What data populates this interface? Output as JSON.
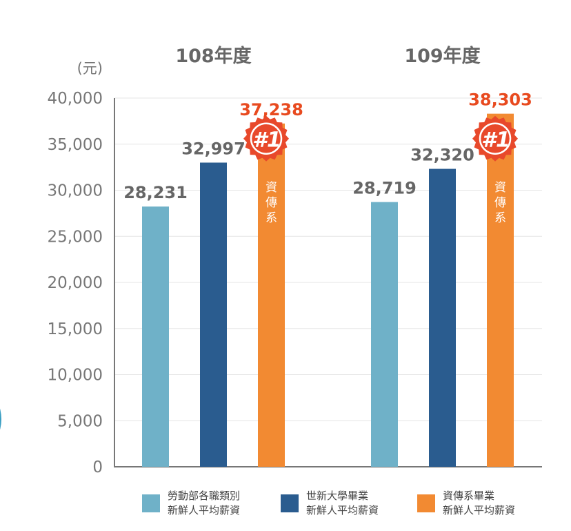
{
  "colors": {
    "series1": "#6fb1c8",
    "series2": "#2a5c8f",
    "series3": "#f28a32",
    "badge": "#e8492b",
    "highlight_label": "#e84a1f",
    "value_label": "#666666",
    "axis": "#777777",
    "grid": "#e6e6e6"
  },
  "chart_data": {
    "type": "bar",
    "unit_label": "(元)",
    "categories": [
      "108年度",
      "109年度"
    ],
    "series": [
      {
        "name": "勞動部各職類別新鮮人平均薪資",
        "values": [
          28231,
          28719
        ]
      },
      {
        "name": "世新大學畢業新鮮人平均薪資",
        "values": [
          32997,
          32320
        ]
      },
      {
        "name": "資傳系畢業新鮮人平均薪資",
        "values": [
          37238,
          38303
        ]
      }
    ],
    "value_labels": [
      [
        "28,231",
        "28,719"
      ],
      [
        "32,997",
        "32,320"
      ],
      [
        "37,238",
        "38,303"
      ]
    ],
    "ylim": [
      0,
      40000
    ],
    "yticks": [
      0,
      5000,
      10000,
      15000,
      20000,
      25000,
      30000,
      35000,
      40000
    ],
    "ytick_labels": [
      "0",
      "5,000",
      "10,000",
      "15,000",
      "20,000",
      "25,000",
      "30,000",
      "35,000",
      "40,000"
    ],
    "grid": true,
    "legend_position": "bottom",
    "highlight_series": 2,
    "badge_text": "#1",
    "bar_text": "資傳系"
  },
  "legend": [
    {
      "line1": "勞動部各職類別",
      "line2": "新鮮人平均薪資"
    },
    {
      "line1": "世新大學畢業",
      "line2": "新鮮人平均薪資"
    },
    {
      "line1": "資傳系畢業",
      "line2": "新鮮人平均薪資"
    }
  ]
}
